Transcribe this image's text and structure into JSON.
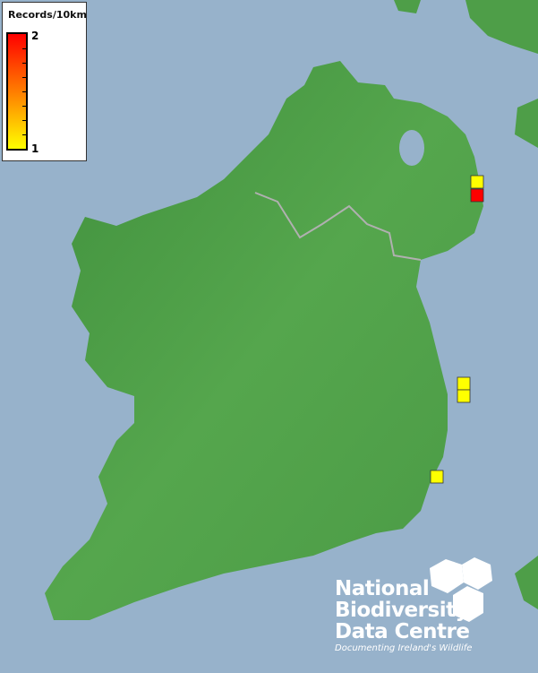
{
  "legend": {
    "title": "Records/10km",
    "max_label": "2",
    "min_label": "1",
    "min_color": "#ffff00",
    "max_color": "#ff0000"
  },
  "colors": {
    "sea": "#97b2cb",
    "land": "#4e9e48",
    "border": "#b0b0b0"
  },
  "records": [
    {
      "count": 1
    },
    {
      "count": 2
    },
    {
      "count": 1
    },
    {
      "count": 1
    },
    {
      "count": 1
    }
  ],
  "logo": {
    "line1": "National",
    "line2": "Biodiversity",
    "line3": "Data Centre",
    "tagline": "Documenting Ireland's Wildlife"
  }
}
